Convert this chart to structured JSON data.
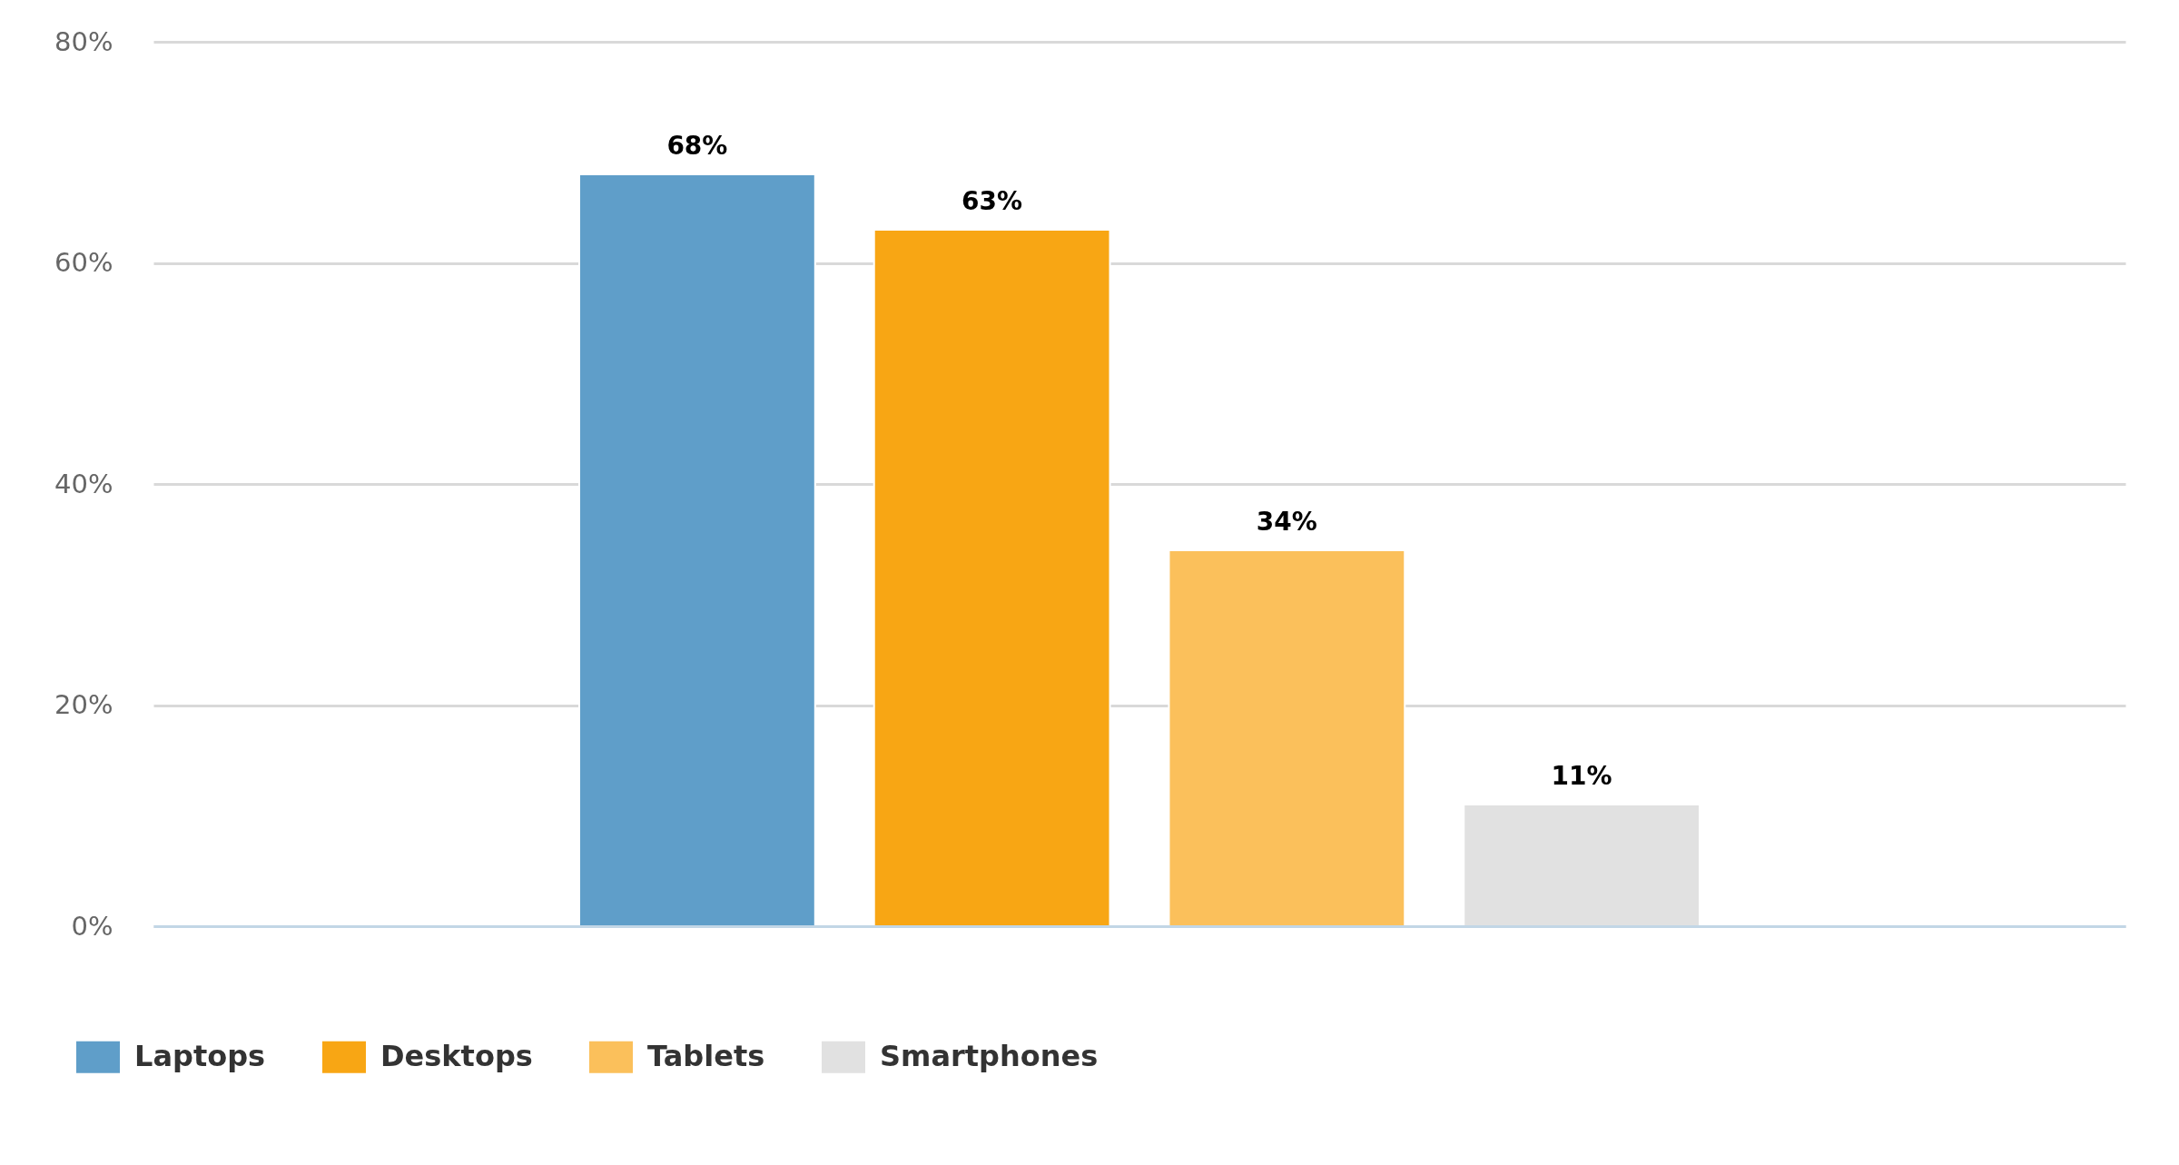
{
  "chart_data": {
    "type": "bar",
    "categories": [
      null
    ],
    "series": [
      {
        "name": "Laptops",
        "color": "#5f9ec9",
        "values": [
          68
        ],
        "value_labels": [
          "68%"
        ]
      },
      {
        "name": "Desktops",
        "color": "#f8a614",
        "values": [
          63
        ],
        "value_labels": [
          "63%"
        ]
      },
      {
        "name": "Tablets",
        "color": "#fbc05b",
        "values": [
          34
        ],
        "value_labels": [
          "34%"
        ]
      },
      {
        "name": "Smartphones",
        "color": "#e1e1e1",
        "values": [
          11
        ],
        "value_labels": [
          "11%"
        ]
      }
    ],
    "ylim": [
      0,
      80
    ],
    "yticks": [
      {
        "value": 0,
        "label": "0%"
      },
      {
        "value": 20,
        "label": "20%"
      },
      {
        "value": 40,
        "label": "40%"
      },
      {
        "value": 60,
        "label": "60%"
      },
      {
        "value": 80,
        "label": "80%"
      }
    ],
    "grid": "y",
    "legend": "bottom",
    "tick_labels": "y"
  }
}
